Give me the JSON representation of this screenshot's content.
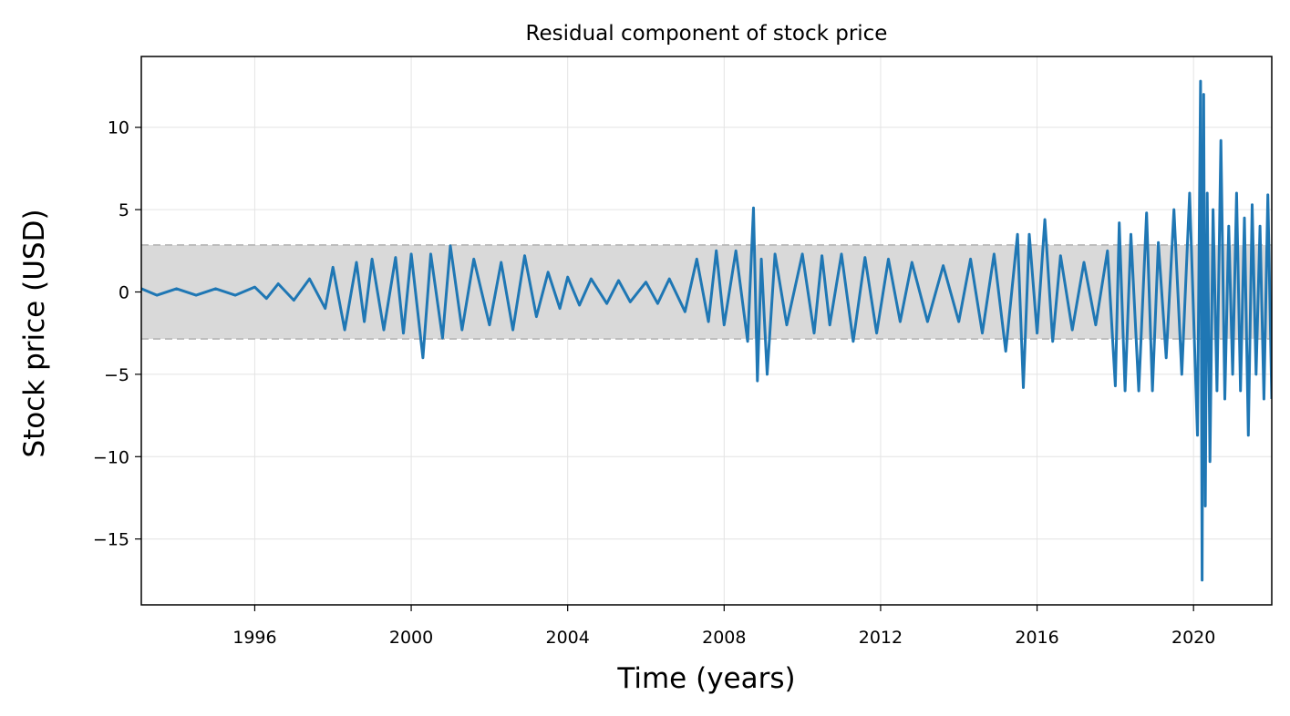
{
  "chart_data": {
    "type": "line",
    "title": "Residual component of stock price",
    "xlabel": "Time (years)",
    "ylabel": "Stock price (USD)",
    "xlim": [
      1993.1,
      2022.0
    ],
    "ylim": [
      -19,
      14.3
    ],
    "x_ticks": [
      {
        "value": 1996,
        "label": "1996"
      },
      {
        "value": 2000,
        "label": "2000"
      },
      {
        "value": 2004,
        "label": "2004"
      },
      {
        "value": 2008,
        "label": "2008"
      },
      {
        "value": 2012,
        "label": "2012"
      },
      {
        "value": 2016,
        "label": "2016"
      },
      {
        "value": 2020,
        "label": "2020"
      }
    ],
    "y_ticks": [
      {
        "value": 10,
        "label": "10"
      },
      {
        "value": 5,
        "label": "5"
      },
      {
        "value": 0,
        "label": "0"
      },
      {
        "value": -5,
        "label": "−5"
      },
      {
        "value": -10,
        "label": "−10"
      },
      {
        "value": -15,
        "label": "−15"
      }
    ],
    "grid": true,
    "band": {
      "lower": -2.85,
      "upper": 2.85,
      "fill_color": "#d9d9d9",
      "edge_color": "#bdbdbd"
    },
    "series": [
      {
        "color": "#1f77b4",
        "x": [
          1993.1,
          1993.5,
          1994.0,
          1994.5,
          1995.0,
          1995.5,
          1996.0,
          1996.3,
          1996.6,
          1997.0,
          1997.4,
          1997.8,
          1998.0,
          1998.3,
          1998.6,
          1998.8,
          1999.0,
          1999.3,
          1999.6,
          1999.8,
          2000.0,
          2000.3,
          2000.5,
          2000.8,
          2001.0,
          2001.3,
          2001.6,
          2002.0,
          2002.3,
          2002.6,
          2002.9,
          2003.2,
          2003.5,
          2003.8,
          2004.0,
          2004.3,
          2004.6,
          2005.0,
          2005.3,
          2005.6,
          2006.0,
          2006.3,
          2006.6,
          2007.0,
          2007.3,
          2007.6,
          2007.8,
          2008.0,
          2008.3,
          2008.6,
          2008.75,
          2008.85,
          2008.95,
          2009.1,
          2009.3,
          2009.6,
          2010.0,
          2010.3,
          2010.5,
          2010.7,
          2011.0,
          2011.3,
          2011.6,
          2011.9,
          2012.2,
          2012.5,
          2012.8,
          2013.2,
          2013.6,
          2014.0,
          2014.3,
          2014.6,
          2014.9,
          2015.2,
          2015.5,
          2015.65,
          2015.8,
          2016.0,
          2016.2,
          2016.4,
          2016.6,
          2016.9,
          2017.2,
          2017.5,
          2017.8,
          2018.0,
          2018.1,
          2018.25,
          2018.4,
          2018.6,
          2018.8,
          2018.95,
          2019.1,
          2019.3,
          2019.5,
          2019.7,
          2019.9,
          2020.1,
          2020.18,
          2020.22,
          2020.26,
          2020.3,
          2020.35,
          2020.42,
          2020.5,
          2020.6,
          2020.7,
          2020.8,
          2020.9,
          2021.0,
          2021.1,
          2021.2,
          2021.3,
          2021.4,
          2021.5,
          2021.6,
          2021.7,
          2021.8,
          2021.9,
          2022.0
        ],
        "y": [
          0.2,
          -0.2,
          0.2,
          -0.2,
          0.2,
          -0.2,
          0.3,
          -0.4,
          0.5,
          -0.5,
          0.8,
          -1.0,
          1.5,
          -2.3,
          1.8,
          -1.8,
          2.0,
          -2.3,
          2.1,
          -2.5,
          2.3,
          -4.0,
          2.3,
          -2.8,
          2.8,
          -2.3,
          2.0,
          -2.0,
          1.8,
          -2.3,
          2.2,
          -1.5,
          1.2,
          -1.0,
          0.9,
          -0.8,
          0.8,
          -0.7,
          0.7,
          -0.6,
          0.6,
          -0.7,
          0.8,
          -1.2,
          2.0,
          -1.8,
          2.5,
          -2.0,
          2.5,
          -3.0,
          5.1,
          -5.4,
          2.0,
          -5.0,
          2.3,
          -2.0,
          2.3,
          -2.5,
          2.2,
          -2.0,
          2.3,
          -3.0,
          2.1,
          -2.5,
          2.0,
          -1.8,
          1.8,
          -1.8,
          1.6,
          -1.8,
          2.0,
          -2.5,
          2.3,
          -3.6,
          3.5,
          -5.8,
          3.5,
          -2.5,
          4.4,
          -3.0,
          2.2,
          -2.3,
          1.8,
          -2.0,
          2.5,
          -5.7,
          4.2,
          -6.0,
          3.5,
          -6.0,
          4.8,
          -6.0,
          3.0,
          -4.0,
          5.0,
          -5.0,
          6.0,
          -8.7,
          12.8,
          -17.5,
          12.0,
          -13.0,
          6.0,
          -10.3,
          5.0,
          -6.0,
          9.2,
          -6.5,
          4.0,
          -5.0,
          6.0,
          -6.0,
          4.5,
          -8.7,
          5.3,
          -5.0,
          4.0,
          -6.5,
          5.9,
          -6.5
        ]
      }
    ]
  }
}
